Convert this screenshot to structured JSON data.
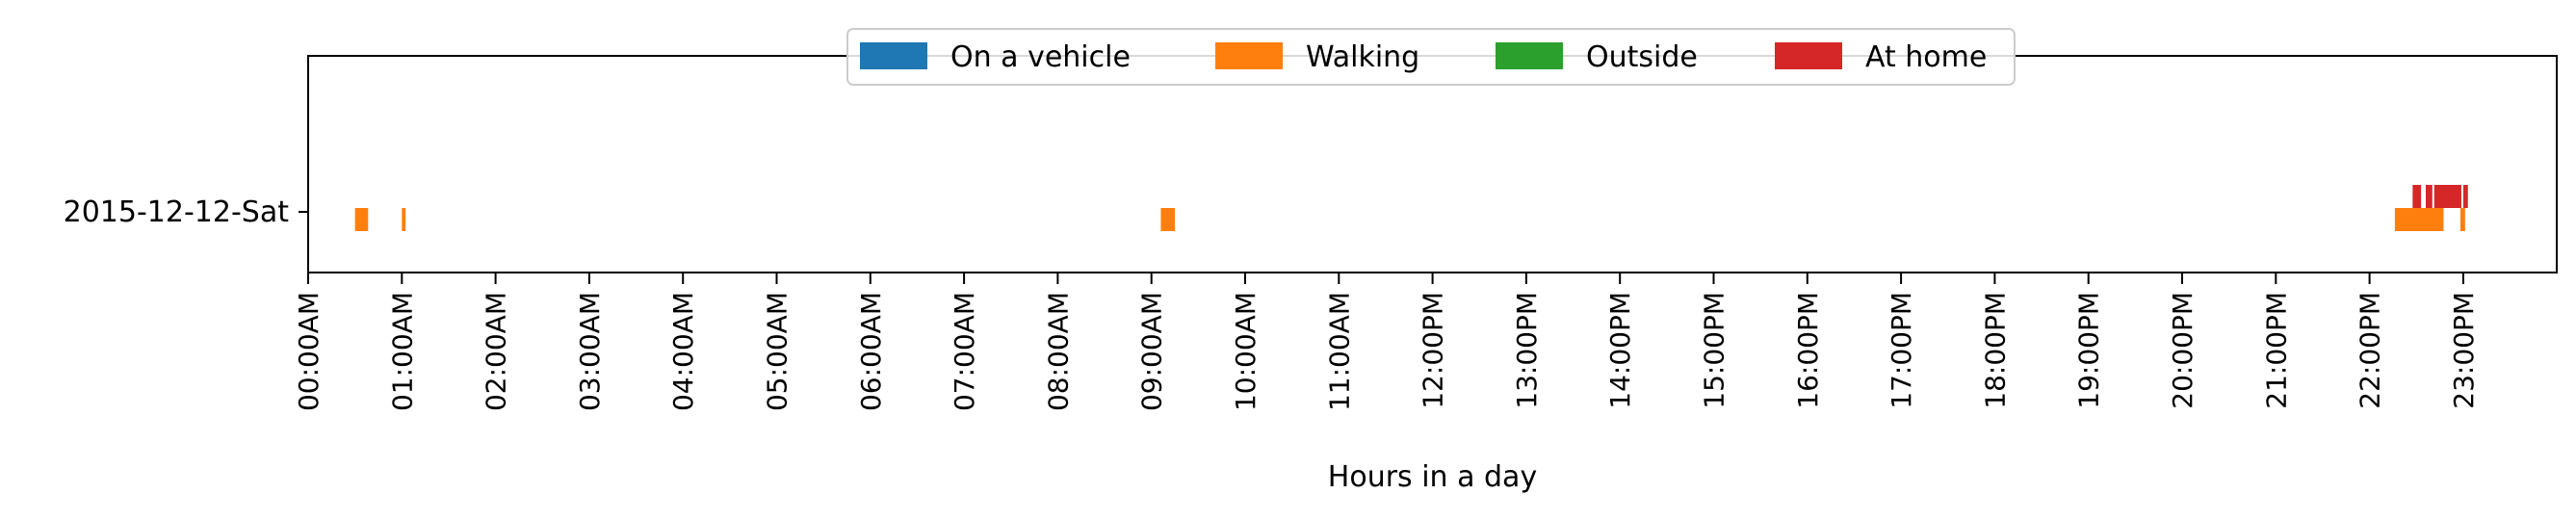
{
  "chart_data": {
    "type": "timeline",
    "xlabel": "Hours in a day",
    "ylabel": "",
    "xlim": [
      0,
      24
    ],
    "x_ticks": [
      "00:00AM",
      "01:00AM",
      "02:00AM",
      "03:00AM",
      "04:00AM",
      "05:00AM",
      "06:00AM",
      "07:00AM",
      "08:00AM",
      "09:00AM",
      "10:00AM",
      "11:00AM",
      "12:00PM",
      "13:00PM",
      "14:00PM",
      "15:00PM",
      "16:00PM",
      "17:00PM",
      "18:00PM",
      "19:00PM",
      "20:00PM",
      "21:00PM",
      "22:00PM",
      "23:00PM"
    ],
    "rows": [
      "2015-12-12-Sat"
    ],
    "legend_position": "top-center",
    "series": [
      {
        "name": "On a vehicle",
        "color": "#1f77b4",
        "segments": []
      },
      {
        "name": "Walking",
        "color": "#ff7f0e",
        "segments": [
          {
            "row": "2015-12-12-Sat",
            "start": 0.5,
            "end": 0.64
          },
          {
            "row": "2015-12-12-Sat",
            "start": 1.0,
            "end": 1.04
          },
          {
            "row": "2015-12-12-Sat",
            "start": 9.1,
            "end": 9.25
          },
          {
            "row": "2015-12-12-Sat",
            "start": 22.27,
            "end": 22.79
          },
          {
            "row": "2015-12-12-Sat",
            "start": 22.97,
            "end": 23.02
          }
        ]
      },
      {
        "name": "Outside",
        "color": "#2ca02c",
        "segments": []
      },
      {
        "name": "At home",
        "color": "#d62728",
        "segments": [
          {
            "row": "2015-12-12-Sat",
            "start": 22.46,
            "end": 22.55
          },
          {
            "row": "2015-12-12-Sat",
            "start": 22.6,
            "end": 22.67
          },
          {
            "row": "2015-12-12-Sat",
            "start": 22.69,
            "end": 22.98
          },
          {
            "row": "2015-12-12-Sat",
            "start": 23.0,
            "end": 23.05
          }
        ]
      }
    ]
  }
}
